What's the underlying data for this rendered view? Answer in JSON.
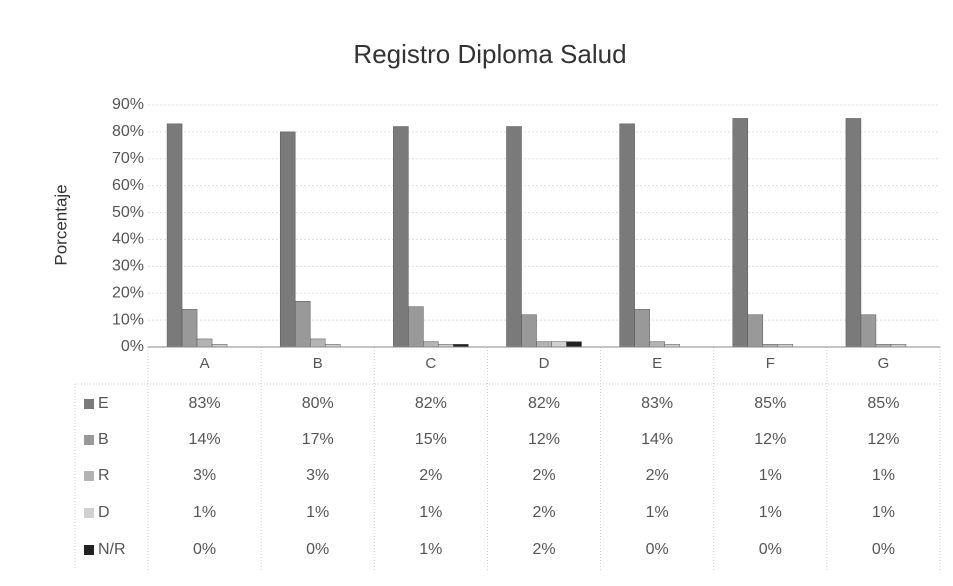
{
  "chart_data": {
    "type": "bar",
    "title": "Registro Diploma Salud",
    "y_label": "Porcentaje",
    "categories": [
      "A",
      "B",
      "C",
      "D",
      "E",
      "F",
      "G"
    ],
    "series": [
      {
        "name": "E",
        "color": "#7a7a7a",
        "values": [
          83,
          80,
          82,
          82,
          83,
          85,
          85
        ],
        "value_labels": [
          "83%",
          "80%",
          "82%",
          "82%",
          "83%",
          "85%",
          "85%"
        ]
      },
      {
        "name": "B",
        "color": "#999999",
        "values": [
          14,
          17,
          15,
          12,
          14,
          12,
          12
        ],
        "value_labels": [
          "14%",
          "17%",
          "15%",
          "12%",
          "14%",
          "12%",
          "12%"
        ]
      },
      {
        "name": "R",
        "color": "#b3b3b3",
        "values": [
          3,
          3,
          2,
          2,
          2,
          1,
          1
        ],
        "value_labels": [
          "3%",
          "3%",
          "2%",
          "2%",
          "2%",
          "1%",
          "1%"
        ]
      },
      {
        "name": "D",
        "color": "#d0d0d0",
        "values": [
          1,
          1,
          1,
          2,
          1,
          1,
          1
        ],
        "value_labels": [
          "1%",
          "1%",
          "1%",
          "2%",
          "1%",
          "1%",
          "1%"
        ]
      },
      {
        "name": "N/R",
        "color": "#222222",
        "values": [
          0,
          0,
          1,
          2,
          0,
          0,
          0
        ],
        "value_labels": [
          "0%",
          "0%",
          "1%",
          "2%",
          "0%",
          "0%",
          "0%"
        ]
      }
    ],
    "ylim": [
      0,
      90
    ],
    "yticks": [
      {
        "value": 0,
        "label": "0%"
      },
      {
        "value": 10,
        "label": "10%"
      },
      {
        "value": 20,
        "label": "20%"
      },
      {
        "value": 30,
        "label": "30%"
      },
      {
        "value": 40,
        "label": "40%"
      },
      {
        "value": 50,
        "label": "50%"
      },
      {
        "value": 60,
        "label": "60%"
      },
      {
        "value": 70,
        "label": "70%"
      },
      {
        "value": 80,
        "label": "80%"
      },
      {
        "value": 90,
        "label": "90%"
      }
    ],
    "grid": true
  }
}
